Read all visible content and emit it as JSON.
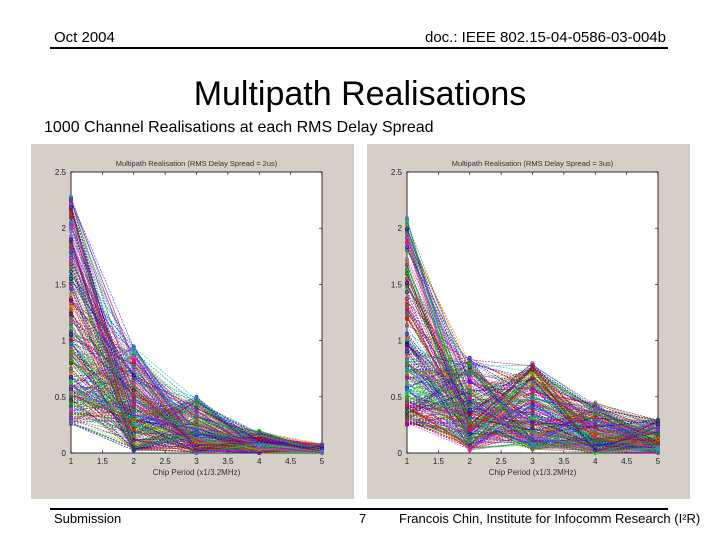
{
  "header": {
    "date": "Oct 2004",
    "doc_id": "doc.: IEEE 802.15-04-0586-03-004b"
  },
  "slide": {
    "title": "Multipath Realisations",
    "subtitle": "1000 Channel Realisations at each RMS Delay Spread"
  },
  "footer": {
    "left": "Submission",
    "page": "7",
    "author": "Francois Chin, Institute for Infocomm Research (I²R)"
  },
  "chart_data": [
    {
      "type": "line",
      "title": "Multipath Realisation (RMS Delay Spread = 2us)",
      "xlabel": "Chip Period (x1/3.2MHz)",
      "ylabel": "",
      "x": [
        1,
        2,
        3,
        4,
        5
      ],
      "xlim": [
        1,
        5
      ],
      "ylim": [
        0,
        2.5
      ],
      "xticks": [
        "1",
        "1.5",
        "2",
        "2.5",
        "3",
        "3.5",
        "4",
        "4.5",
        "5"
      ],
      "yticks": [
        "0",
        "0.5",
        "1",
        "1.5",
        "2",
        "2.5"
      ],
      "series_count": 1000,
      "typical_envelope": {
        "max": [
          2.3,
          0.95,
          0.5,
          0.2,
          0.08
        ],
        "median": [
          1.1,
          0.45,
          0.18,
          0.08,
          0.03
        ],
        "min": [
          0.25,
          0.02,
          0.0,
          0.0,
          0.0
        ]
      },
      "grid": false
    },
    {
      "type": "line",
      "title": "Multipath Realisation (RMS Delay Spread = 3us)",
      "xlabel": "Chip Period (x1/3.2MHz)",
      "ylabel": "",
      "x": [
        1,
        2,
        3,
        4,
        5
      ],
      "xlim": [
        1,
        5
      ],
      "ylim": [
        0,
        2.5
      ],
      "xticks": [
        "1",
        "1.5",
        "2",
        "2.5",
        "3",
        "3.5",
        "4",
        "4.5",
        "5"
      ],
      "yticks": [
        "0",
        "0.5",
        "1",
        "1.5",
        "2",
        "2.5"
      ],
      "series_count": 1000,
      "typical_envelope": {
        "max": [
          2.1,
          0.85,
          0.8,
          0.45,
          0.3
        ],
        "median": [
          0.95,
          0.4,
          0.35,
          0.2,
          0.12
        ],
        "min": [
          0.25,
          0.02,
          0.03,
          0.0,
          0.0
        ]
      },
      "grid": false
    }
  ]
}
